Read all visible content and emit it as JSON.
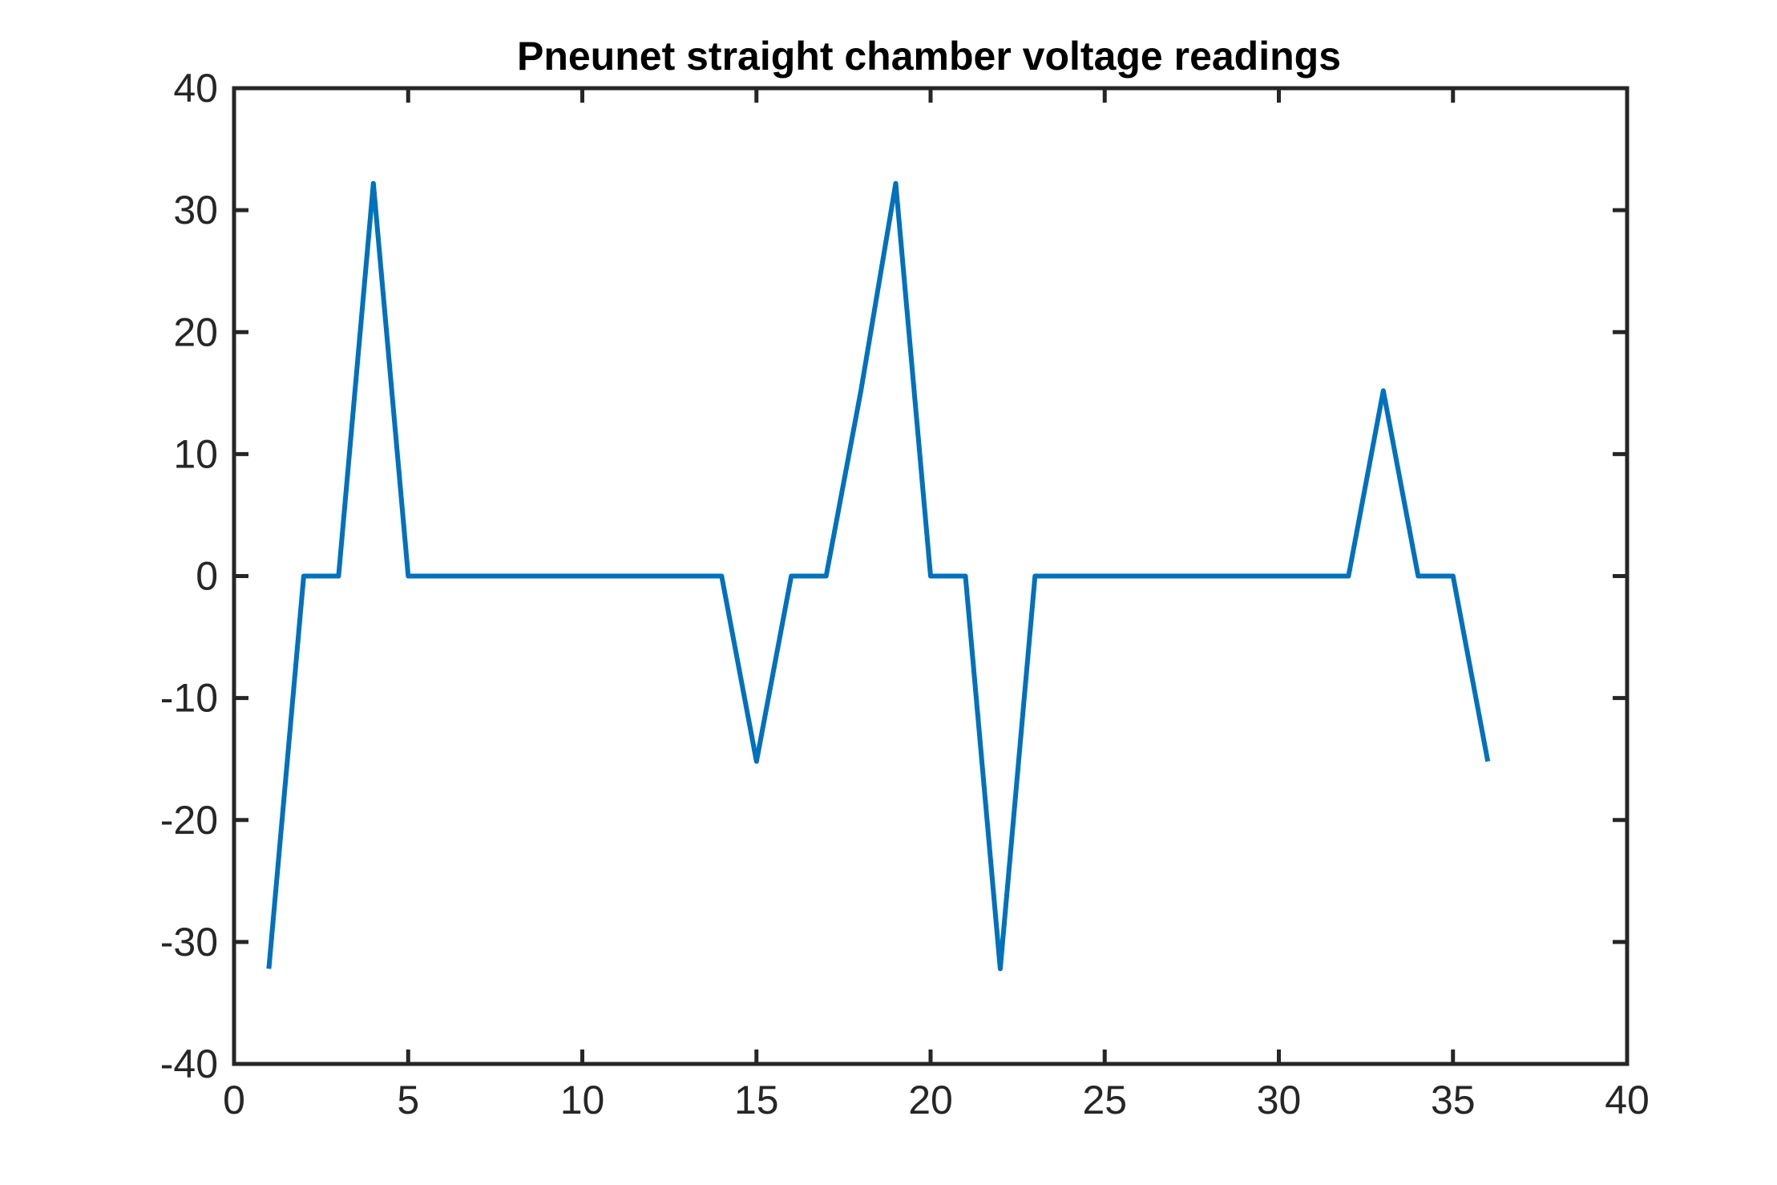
{
  "chart_data": {
    "type": "line",
    "title": "Pneunet straight chamber voltage readings",
    "xlabel": "",
    "ylabel": "",
    "xlim": [
      0,
      40
    ],
    "ylim": [
      -40,
      40
    ],
    "xticks": [
      0,
      5,
      10,
      15,
      20,
      25,
      30,
      35,
      40
    ],
    "yticks": [
      -40,
      -30,
      -20,
      -10,
      0,
      10,
      20,
      30,
      40
    ],
    "xtick_labels": [
      "0",
      "5",
      "10",
      "15",
      "20",
      "25",
      "30",
      "35",
      "40"
    ],
    "ytick_labels": [
      "-40",
      "-30",
      "-20",
      "-10",
      "0",
      "10",
      "20",
      "30",
      "40"
    ],
    "grid": false,
    "legend": "none",
    "series": [
      {
        "color": "#0072BD",
        "x": [
          1,
          2,
          3,
          4,
          5,
          6,
          7,
          8,
          9,
          10,
          11,
          12,
          13,
          14,
          15,
          16,
          17,
          18,
          19,
          20,
          21,
          22,
          23,
          24,
          25,
          26,
          27,
          28,
          29,
          30,
          31,
          32,
          33,
          34,
          35,
          36
        ],
        "y": [
          -32.2,
          0,
          0,
          32.2,
          0,
          0,
          0,
          0,
          0,
          0,
          0,
          0,
          0,
          0,
          -15.2,
          0,
          0,
          15.2,
          32.2,
          0,
          0,
          -32.2,
          0,
          0,
          0,
          0,
          0,
          0,
          0,
          0,
          0,
          0,
          15.2,
          0,
          0,
          -15.2
        ]
      }
    ]
  }
}
